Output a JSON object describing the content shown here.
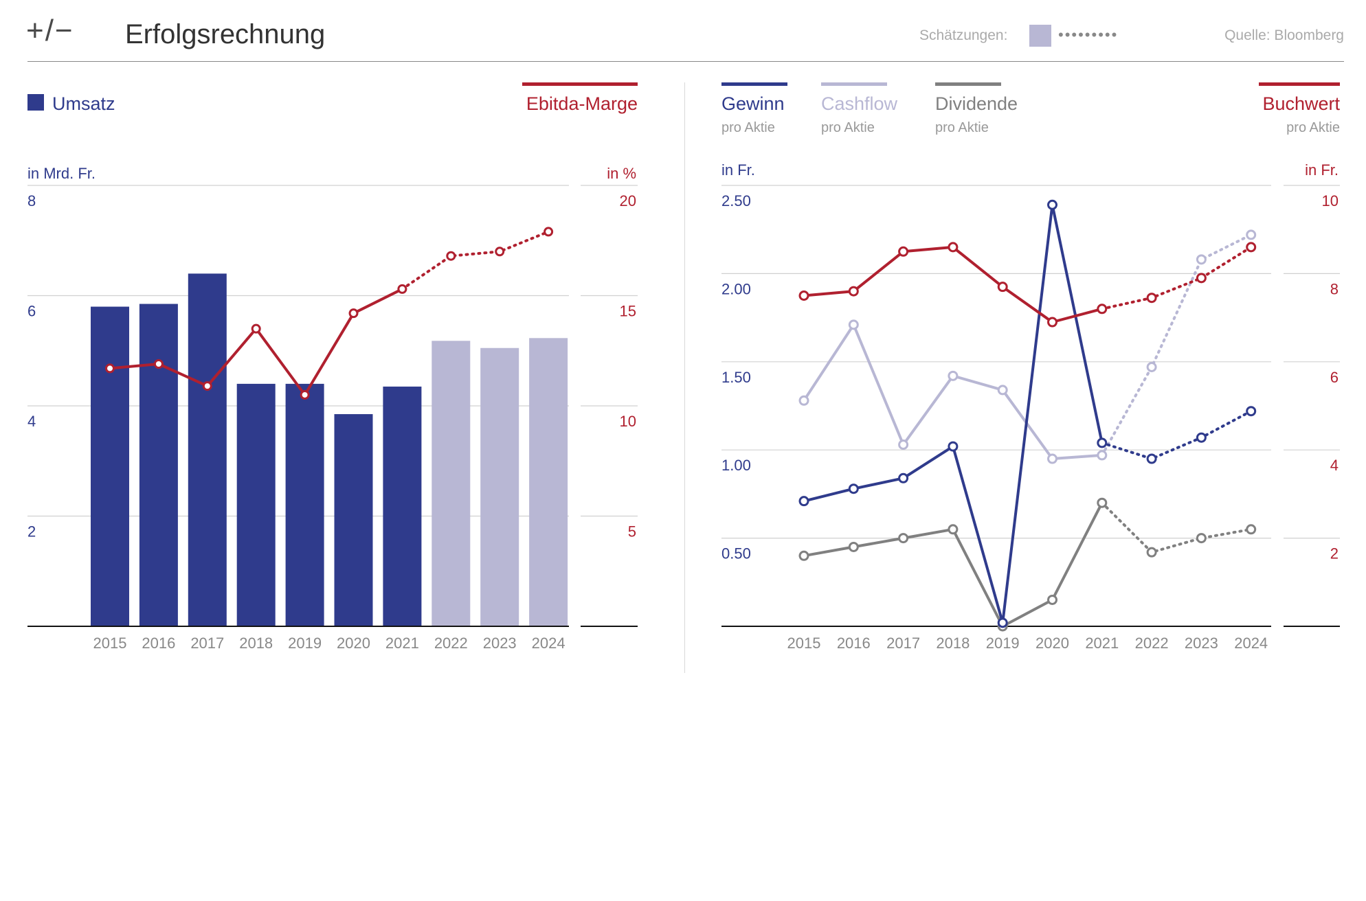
{
  "header": {
    "logo": "+/−",
    "title": "Erfolgsrechnung",
    "estimates_label": "Schätzungen:",
    "estimates_dots": "•••••••••",
    "source": "Quelle: Bloomberg"
  },
  "colors": {
    "navy": "#2f3b8c",
    "lavender": "#b8b7d4",
    "red": "#b0202f",
    "gray": "#808080",
    "grid": "#d0d0d0",
    "axis_text_gray": "#888888"
  },
  "chart_data": [
    {
      "type": "bar",
      "categories": [
        "2015",
        "2016",
        "2017",
        "2018",
        "2019",
        "2020",
        "2021",
        "2022",
        "2023",
        "2024"
      ],
      "series": [
        {
          "name": "Umsatz",
          "axis": "left",
          "values": [
            5.8,
            5.85,
            6.4,
            4.4,
            4.4,
            3.85,
            4.35,
            5.18,
            5.05,
            5.23
          ],
          "estimate_from_index": 7
        },
        {
          "name": "Ebitda-Marge",
          "type": "line",
          "axis": "right",
          "values": [
            11.7,
            11.9,
            10.9,
            13.5,
            10.5,
            14.2,
            15.3,
            16.8,
            17.0,
            17.9
          ],
          "estimate_from_index": 6
        }
      ],
      "ylabel_left": "in Mrd. Fr.",
      "ylabel_right": "in %",
      "ylim_left": [
        0,
        8
      ],
      "ylim_right": [
        0,
        20
      ],
      "yticks_left": [
        "2",
        "4",
        "6",
        "8"
      ],
      "yticks_right": [
        "5",
        "10",
        "15",
        "20"
      ],
      "legend": [
        "Umsatz",
        "Ebitda-Marge"
      ],
      "grid": true
    },
    {
      "type": "line",
      "categories": [
        "2015",
        "2016",
        "2017",
        "2018",
        "2019",
        "2020",
        "2021",
        "2022",
        "2023",
        "2024"
      ],
      "series": [
        {
          "name": "Gewinn",
          "sub": "pro Aktie",
          "axis": "left",
          "values": [
            0.71,
            0.78,
            0.84,
            1.02,
            0.02,
            2.39,
            1.04,
            0.95,
            1.07,
            1.22
          ],
          "estimate_from_index": 6
        },
        {
          "name": "Cashflow",
          "sub": "pro Aktie",
          "axis": "left",
          "values": [
            1.28,
            1.71,
            1.03,
            1.42,
            1.34,
            0.95,
            0.97,
            1.47,
            2.08,
            2.22
          ],
          "estimate_from_index": 6
        },
        {
          "name": "Dividende",
          "sub": "pro Aktie",
          "axis": "left",
          "values": [
            0.4,
            0.45,
            0.5,
            0.55,
            0.0,
            0.15,
            0.7,
            0.42,
            0.5,
            0.55
          ],
          "estimate_from_index": 6
        },
        {
          "name": "Buchwert",
          "sub": "pro Aktie",
          "axis": "right",
          "values": [
            7.5,
            7.6,
            8.5,
            8.6,
            7.7,
            6.9,
            7.2,
            7.45,
            7.9,
            8.6
          ],
          "estimate_from_index": 6
        }
      ],
      "ylabel_left": "in Fr.",
      "ylabel_right": "in Fr.",
      "ylim_left": [
        0,
        2.5
      ],
      "ylim_right": [
        0,
        10
      ],
      "yticks_left": [
        "0.50",
        "1.00",
        "1.50",
        "2.00",
        "2.50"
      ],
      "yticks_right": [
        "2",
        "4",
        "6",
        "8",
        "10"
      ],
      "legend": [
        "Gewinn",
        "Cashflow",
        "Dividende",
        "Buchwert"
      ],
      "grid": true
    }
  ]
}
